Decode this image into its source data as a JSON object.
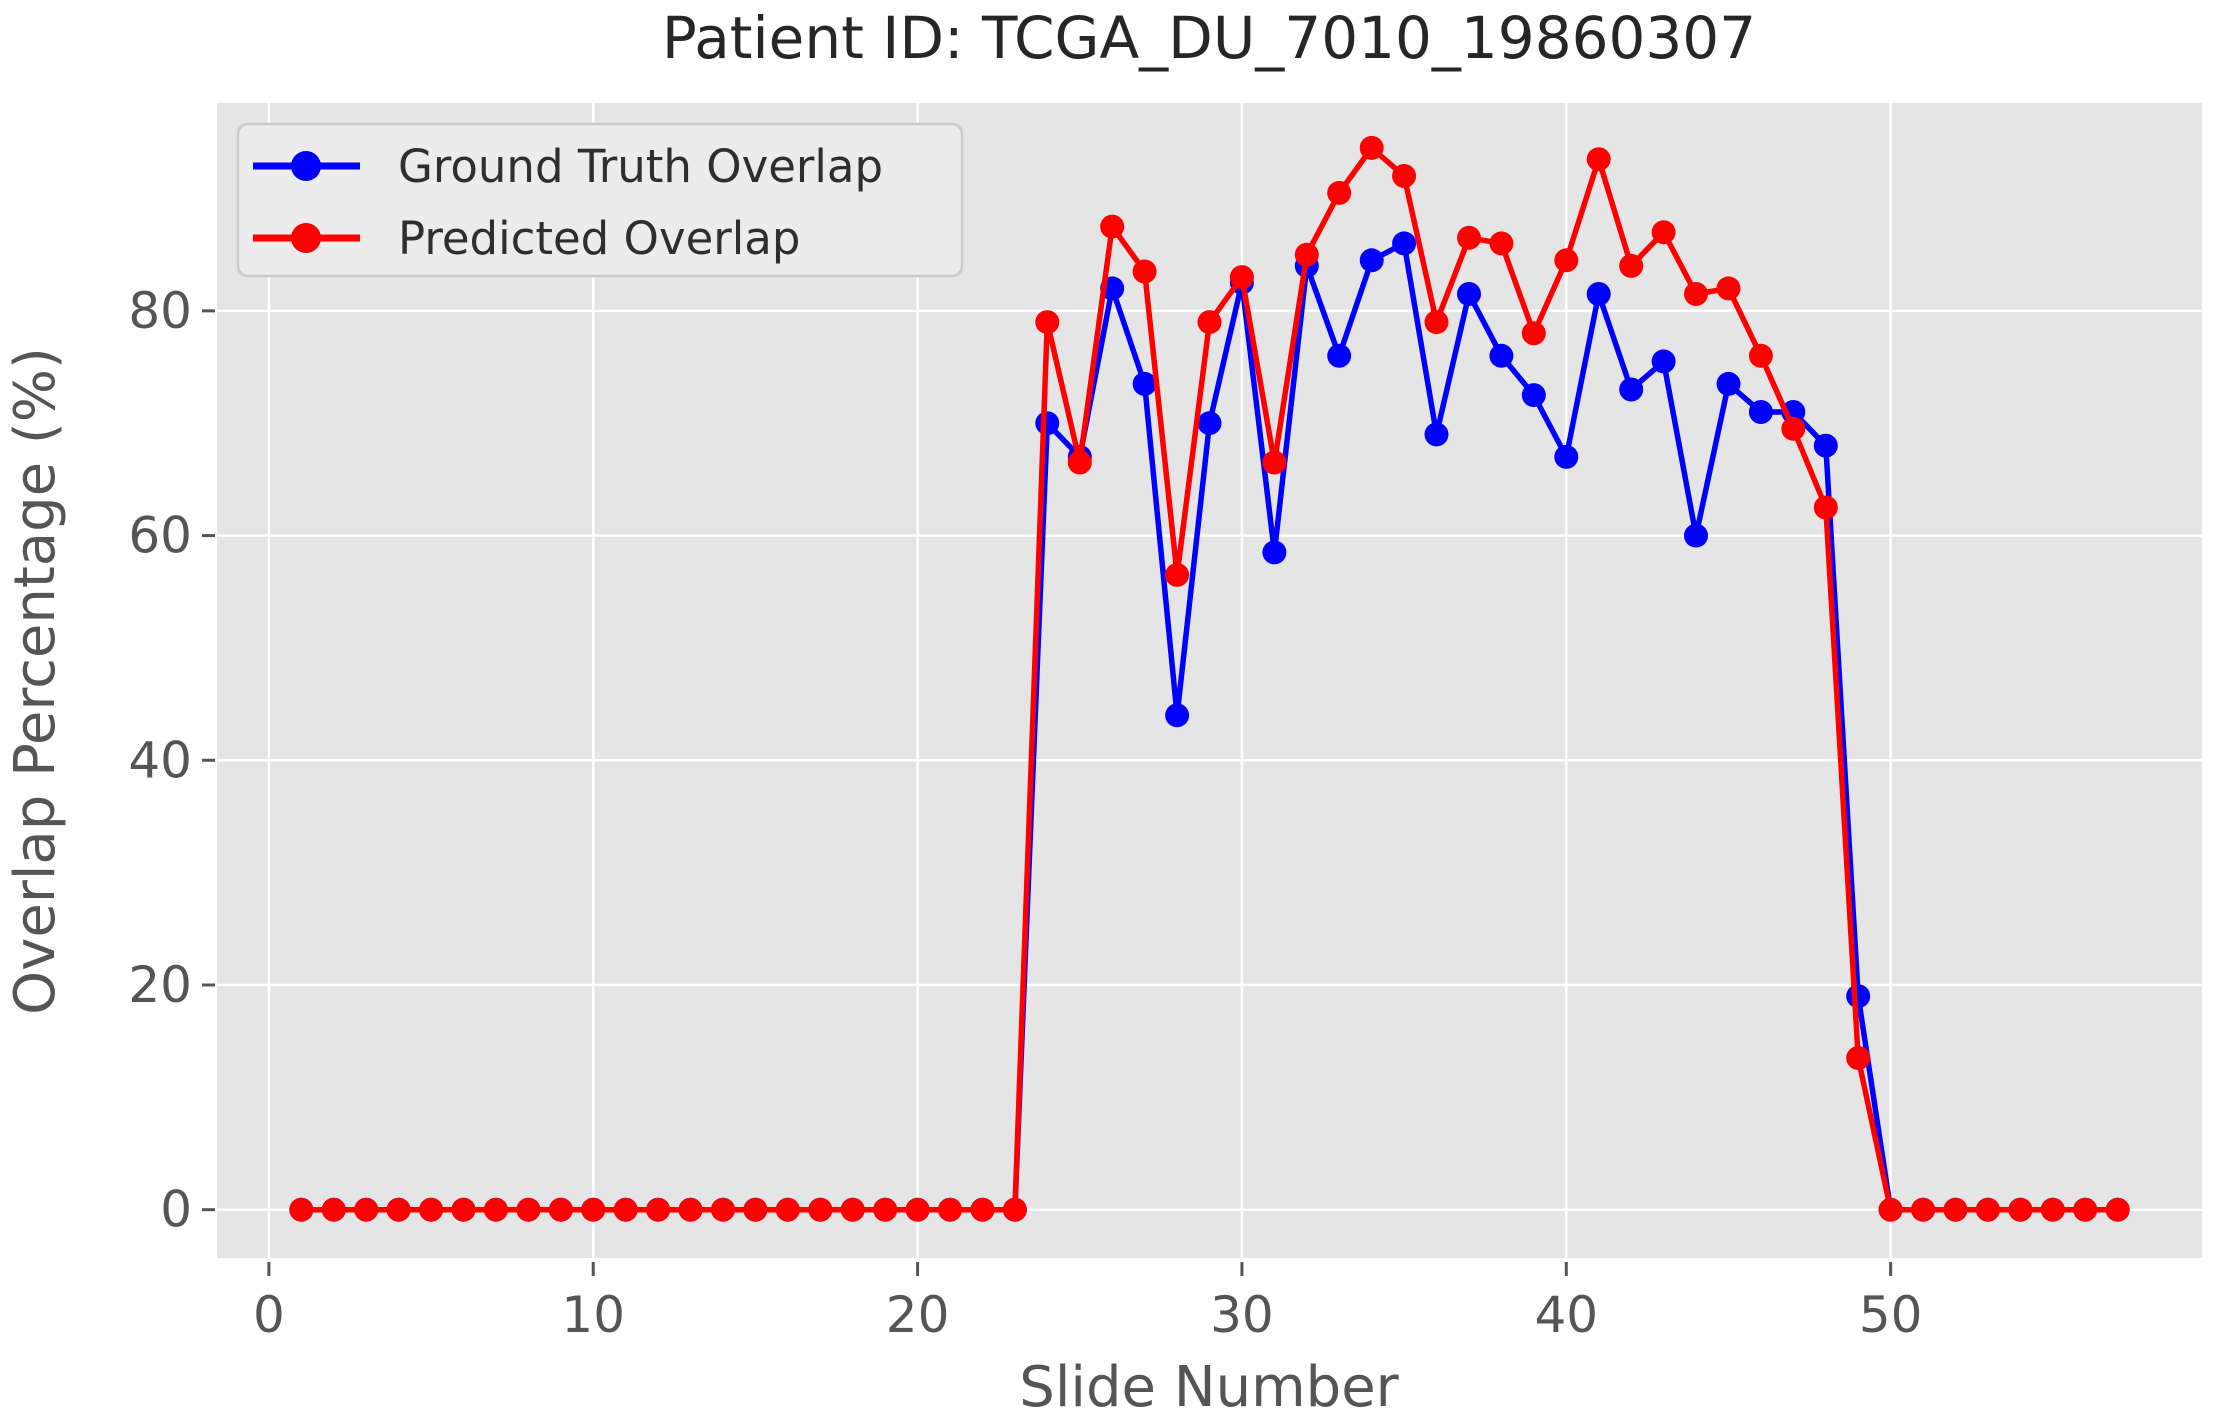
{
  "figure": {
    "background": "#ffffff"
  },
  "chart_data": {
    "type": "line",
    "title": "Patient ID: TCGA_DU_7010_19860307",
    "xlabel": "Slide Number",
    "ylabel": "Overlap Percentage (%)",
    "x": [
      1,
      2,
      3,
      4,
      5,
      6,
      7,
      8,
      9,
      10,
      11,
      12,
      13,
      14,
      15,
      16,
      17,
      18,
      19,
      20,
      21,
      22,
      23,
      24,
      25,
      26,
      27,
      28,
      29,
      30,
      31,
      32,
      33,
      34,
      35,
      36,
      37,
      38,
      39,
      40,
      41,
      42,
      43,
      44,
      45,
      46,
      47,
      48,
      49,
      50,
      51,
      52,
      53,
      54,
      55,
      56,
      57
    ],
    "series": [
      {
        "name": "Ground Truth Overlap",
        "color": "#0000ff",
        "marker": "circle",
        "values": [
          0,
          0,
          0,
          0,
          0,
          0,
          0,
          0,
          0,
          0,
          0,
          0,
          0,
          0,
          0,
          0,
          0,
          0,
          0,
          0,
          0,
          0,
          0,
          70,
          67,
          82,
          73.5,
          44,
          70,
          82.5,
          58.5,
          84,
          76,
          84.5,
          86,
          69,
          81.5,
          76,
          72.5,
          67,
          81.5,
          73,
          75.5,
          60,
          73.5,
          71,
          71,
          68,
          19,
          0,
          0,
          0,
          0,
          0,
          0,
          0,
          0
        ]
      },
      {
        "name": "Predicted Overlap",
        "color": "#ff0000",
        "marker": "circle",
        "values": [
          0,
          0,
          0,
          0,
          0,
          0,
          0,
          0,
          0,
          0,
          0,
          0,
          0,
          0,
          0,
          0,
          0,
          0,
          0,
          0,
          0,
          0,
          0,
          79,
          66.5,
          87.5,
          83.5,
          56.5,
          79,
          83,
          66.5,
          85,
          90.5,
          94.5,
          92,
          79,
          86.5,
          86,
          78,
          84.5,
          93.5,
          84,
          87,
          81.5,
          82,
          76,
          69.5,
          62.5,
          13.5,
          0,
          0,
          0,
          0,
          0,
          0,
          0,
          0
        ]
      }
    ],
    "xlim": [
      -1.6,
      59.6
    ],
    "ylim": [
      -4.3,
      98.5
    ],
    "x_ticks": [
      0,
      10,
      20,
      30,
      40,
      50
    ],
    "y_ticks": [
      0,
      20,
      40,
      60,
      80
    ],
    "grid": true,
    "grid_color": "#ffffff",
    "plot_bg": "#e5e5e5",
    "tick_color": "#555555",
    "legend": {
      "position": "upper left",
      "bg": "#ececec",
      "border": "#c9c9c9"
    }
  }
}
